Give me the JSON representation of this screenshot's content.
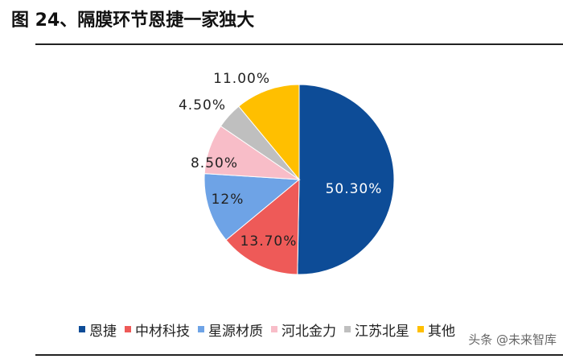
{
  "title": "图 24、隔膜环节恩捷一家独大",
  "watermark": "头条 @未来智库",
  "chart_data": {
    "type": "pie",
    "title": "",
    "slices": [
      {
        "name": "恩捷",
        "value": 50.3,
        "label": "50.30%",
        "color": "#0D4C97"
      },
      {
        "name": "中材科技",
        "value": 13.7,
        "label": "13.70%",
        "color": "#EE5A58"
      },
      {
        "name": "星源材质",
        "value": 12.0,
        "label": "12%",
        "color": "#6EA3E6"
      },
      {
        "name": "河北金力",
        "value": 8.5,
        "label": "8.50%",
        "color": "#F8BDC8"
      },
      {
        "name": "江苏北星",
        "value": 4.5,
        "label": "4.50%",
        "color": "#BFBFBF"
      },
      {
        "name": "其他",
        "value": 11.0,
        "label": "11.00%",
        "color": "#FFBF00"
      }
    ],
    "legend_position": "bottom"
  }
}
